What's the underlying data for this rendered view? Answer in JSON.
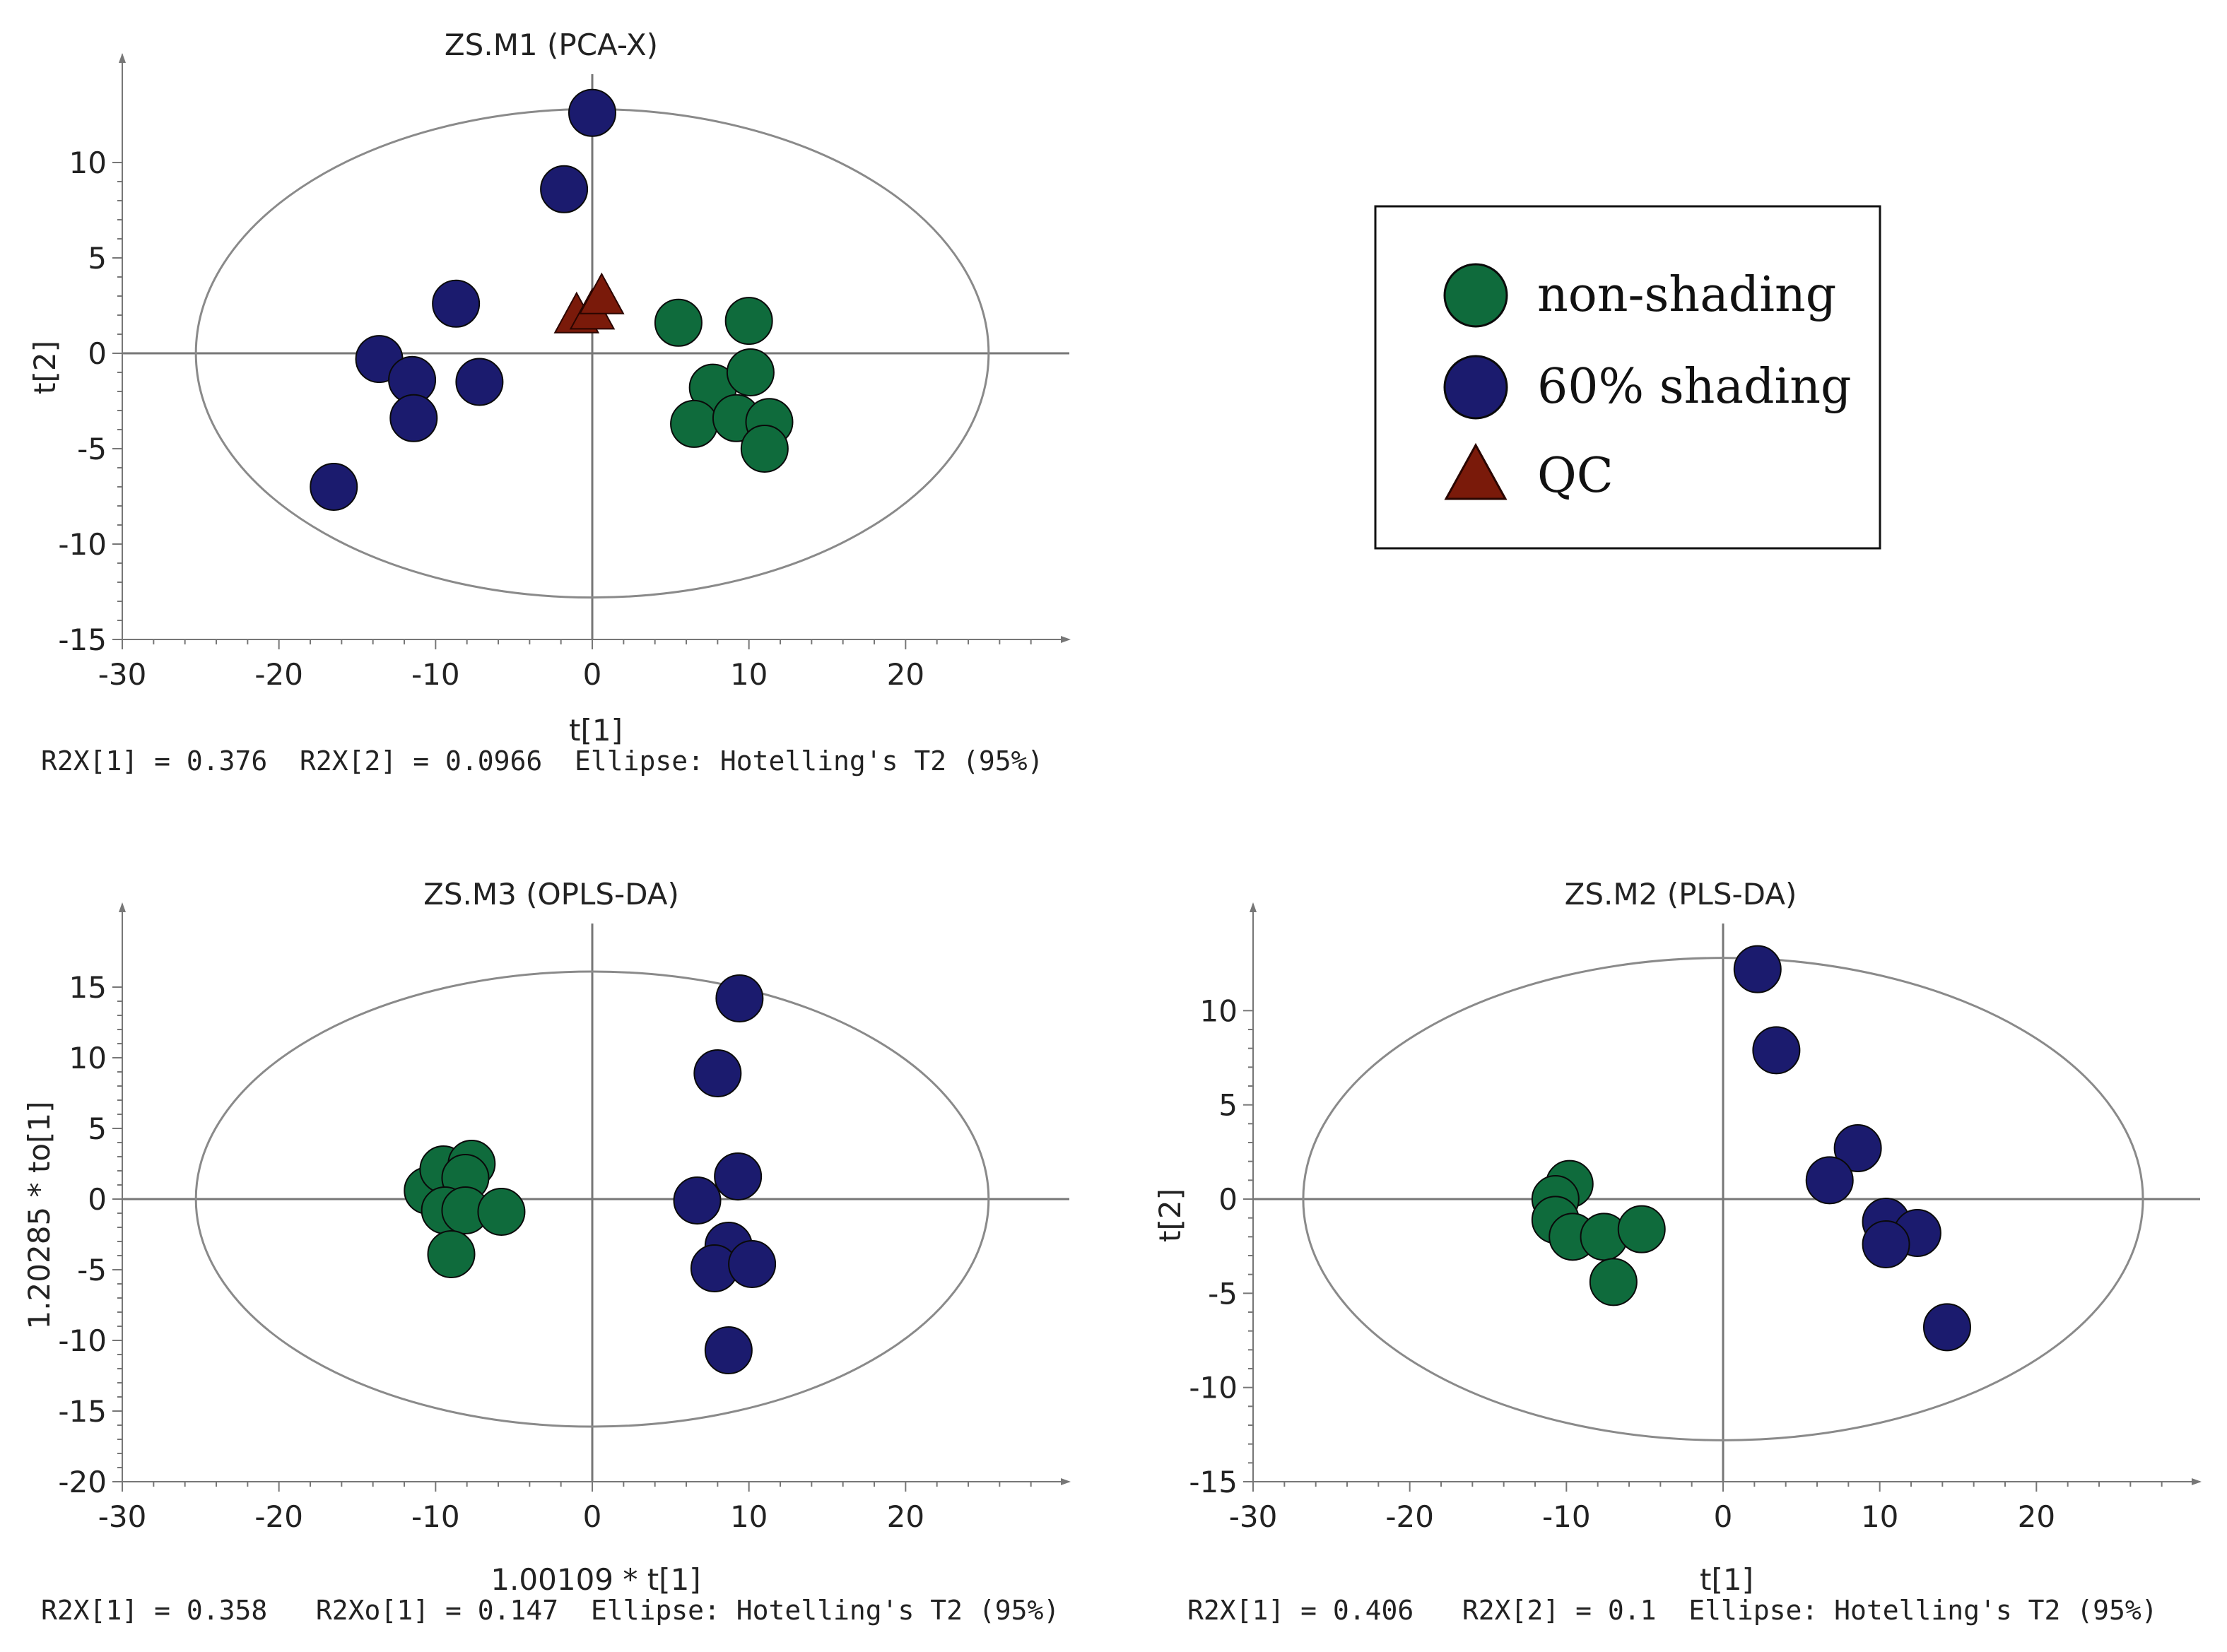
{
  "colors": {
    "non_shading": "#0f6b3c",
    "shading_60": "#1b1b6e",
    "qc": "#7a1a0a",
    "axis": "#777777",
    "ellipse": "#8a8a8a"
  },
  "legend": {
    "items": [
      {
        "label": "non-shading",
        "shape": "circle",
        "color": "#0f6b3c"
      },
      {
        "label": "60% shading",
        "shape": "circle",
        "color": "#1b1b6e"
      },
      {
        "label": "QC",
        "shape": "triangle",
        "color": "#7a1a0a"
      }
    ]
  },
  "chart_data": [
    {
      "id": "pca",
      "type": "scatter",
      "title": "ZS.M1 (PCA-X)",
      "xlabel": "t[1]",
      "ylabel": "t[2]",
      "xlim": [
        -30,
        30
      ],
      "ylim": [
        -15,
        15
      ],
      "xticks": [
        -30,
        -20,
        -10,
        0,
        10,
        20
      ],
      "yticks": [
        -15,
        -10,
        -5,
        0,
        5,
        10
      ],
      "ellipse": {
        "rx": 25.3,
        "ry": 12.8
      },
      "footer": "R2X[1] = 0.376  R2X[2] = 0.0966  Ellipse: Hotelling's T2 (95%)",
      "series": [
        {
          "name": "non-shading",
          "marker": "circle",
          "points": [
            [
              5.5,
              1.6
            ],
            [
              10,
              1.7
            ],
            [
              7.7,
              -1.8
            ],
            [
              10.1,
              -1
            ],
            [
              6.5,
              -3.7
            ],
            [
              9.2,
              -3.4
            ],
            [
              11.3,
              -3.6
            ],
            [
              11,
              -5
            ]
          ]
        },
        {
          "name": "60% shading",
          "marker": "circle",
          "points": [
            [
              0,
              12.6
            ],
            [
              -1.8,
              8.6
            ],
            [
              -8.7,
              2.6
            ],
            [
              -13.6,
              -0.3
            ],
            [
              -11.5,
              -1.4
            ],
            [
              -7.2,
              -1.5
            ],
            [
              -11.4,
              -3.4
            ],
            [
              -16.5,
              -7
            ]
          ]
        },
        {
          "name": "QC",
          "marker": "triangle",
          "points": [
            [
              -1,
              1.9
            ],
            [
              0,
              2.1
            ],
            [
              0.6,
              2.9
            ]
          ]
        }
      ]
    },
    {
      "id": "oplsda",
      "type": "scatter",
      "title": "ZS.M3 (OPLS-DA)",
      "xlabel": "1.00109 * t[1]",
      "ylabel": "1.20285 * to[1]",
      "xlim": [
        -30,
        30
      ],
      "ylim": [
        -20,
        20
      ],
      "xticks": [
        -30,
        -20,
        -10,
        0,
        10,
        20
      ],
      "yticks": [
        -20,
        -15,
        -10,
        -5,
        0,
        5,
        10,
        15
      ],
      "ellipse": {
        "rx": 25.3,
        "ry": 16.1
      },
      "footer": "R2X[1] = 0.358   R2Xo[1] = 0.147  Ellipse: Hotelling's T2 (95%)",
      "series": [
        {
          "name": "non-shading",
          "marker": "circle",
          "points": [
            [
              -10.5,
              0.6
            ],
            [
              -9.5,
              2.1
            ],
            [
              -7.7,
              2.5
            ],
            [
              -8.1,
              1.5
            ],
            [
              -9.4,
              -0.8
            ],
            [
              -8.1,
              -0.8
            ],
            [
              -5.8,
              -0.9
            ],
            [
              -9,
              -3.9
            ]
          ]
        },
        {
          "name": "60% shading",
          "marker": "circle",
          "points": [
            [
              9.4,
              14.2
            ],
            [
              8,
              8.9
            ],
            [
              9.3,
              1.6
            ],
            [
              6.7,
              -0.1
            ],
            [
              8.7,
              -3.3
            ],
            [
              7.8,
              -4.9
            ],
            [
              10.2,
              -4.6
            ],
            [
              8.7,
              -10.7
            ]
          ]
        }
      ]
    },
    {
      "id": "plsda",
      "type": "scatter",
      "title": "ZS.M2 (PLS-DA)",
      "xlabel": "t[1]",
      "ylabel": "t[2]",
      "xlim": [
        -30,
        30
      ],
      "ylim": [
        -15,
        15
      ],
      "xticks": [
        -30,
        -20,
        -10,
        0,
        10,
        20
      ],
      "yticks": [
        -15,
        -10,
        -5,
        0,
        5,
        10
      ],
      "ellipse": {
        "rx": 26.8,
        "ry": 12.8
      },
      "footer": "R2X[1] = 0.406   R2X[2] = 0.1  Ellipse: Hotelling's T2 (95%)",
      "series": [
        {
          "name": "non-shading",
          "marker": "circle",
          "points": [
            [
              -9.8,
              0.8
            ],
            [
              -10.7,
              0
            ],
            [
              -10.7,
              -1.1
            ],
            [
              -9.6,
              -2
            ],
            [
              -7.6,
              -2
            ],
            [
              -5.2,
              -1.6
            ],
            [
              -7,
              -4.4
            ]
          ]
        },
        {
          "name": "60% shading",
          "marker": "circle",
          "points": [
            [
              2.2,
              12.2
            ],
            [
              3.4,
              7.9
            ],
            [
              8.6,
              2.7
            ],
            [
              6.8,
              1
            ],
            [
              10.4,
              -1.2
            ],
            [
              12.4,
              -1.8
            ],
            [
              10.4,
              -2.4
            ],
            [
              14.3,
              -6.8
            ]
          ]
        }
      ]
    }
  ]
}
